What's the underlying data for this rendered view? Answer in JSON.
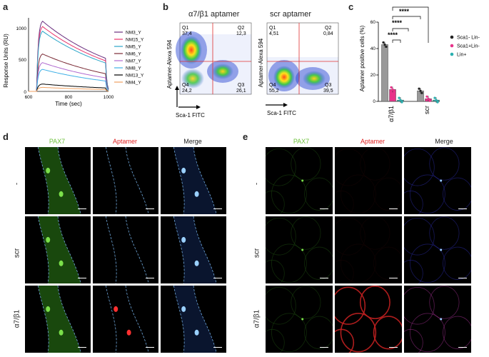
{
  "panel_labels": {
    "a": "a",
    "b": "b",
    "c": "c",
    "d": "d",
    "e": "e"
  },
  "panel_a": {
    "ylabel": "Response Units (RU)",
    "xlabel": "Time (sec)",
    "yticks": [
      "0",
      "500",
      "1000"
    ],
    "xticks": [
      "600",
      "800",
      "1000"
    ],
    "legend": [
      {
        "name": "NM3_Y",
        "color": "#6a2e7f"
      },
      {
        "name": "NM15_Y",
        "color": "#e8336b"
      },
      {
        "name": "NM5_Y",
        "color": "#2aa5c9"
      },
      {
        "name": "NM6_Y",
        "color": "#7a2a35"
      },
      {
        "name": "NM7_Y",
        "color": "#b06ad0"
      },
      {
        "name": "NM8_Y",
        "color": "#3fb0e6"
      },
      {
        "name": "NM13_Y",
        "color": "#000000"
      },
      {
        "name": "NM4_Y",
        "color": "#f0a060"
      }
    ]
  },
  "panel_b": {
    "plot1_title": "α7/β1 aptamer",
    "plot2_title": "scr aptamer",
    "ylabel": "Aptamer-Alexa 594",
    "xlabel": "Sca-1 FITC",
    "plot1_quadrants": [
      {
        "q": "Q1",
        "v": "37,4"
      },
      {
        "q": "Q2",
        "v": "12,3"
      },
      {
        "q": "Q4",
        "v": "24,2"
      },
      {
        "q": "Q3",
        "v": "26,1"
      }
    ],
    "plot2_quadrants": [
      {
        "q": "Q1",
        "v": "4,51"
      },
      {
        "q": "Q2",
        "v": "0,84"
      },
      {
        "q": "Q4",
        "v": "55,2"
      },
      {
        "q": "Q3",
        "v": "39,5"
      }
    ]
  },
  "panel_c": {
    "ylabel": "Aptamer positive cells (%)",
    "yticks": [
      "0",
      "20",
      "40",
      "60"
    ],
    "groups": [
      "α7/β1",
      "scr"
    ],
    "sig": "****",
    "legend": [
      {
        "name": "Sca1- Lin-",
        "color": "#222222"
      },
      {
        "name": "Sca1+Lin-",
        "color": "#e8338a"
      },
      {
        "name": "Lin+",
        "color": "#2ab0b0"
      }
    ]
  },
  "chart_data": [
    {
      "type": "line",
      "title": "",
      "xlabel": "Time (sec)",
      "ylabel": "Response Units (RU)",
      "xlim": [
        600,
        1000
      ],
      "ylim": [
        0,
        1100
      ],
      "series": [
        {
          "name": "NM3_Y",
          "peak": 1050
        },
        {
          "name": "NM15_Y",
          "peak": 970
        },
        {
          "name": "NM5_Y",
          "peak": 900
        },
        {
          "name": "NM6_Y",
          "peak": 560
        },
        {
          "name": "NM7_Y",
          "peak": 430
        },
        {
          "name": "NM8_Y",
          "peak": 330
        },
        {
          "name": "NM13_Y",
          "peak": 110
        },
        {
          "name": "NM4_Y",
          "peak": 60
        }
      ]
    },
    {
      "type": "bar",
      "title": "",
      "xlabel": "",
      "ylabel": "Aptamer positive cells (%)",
      "categories": [
        "α7/β1",
        "scr"
      ],
      "ylim": [
        0,
        60
      ],
      "series": [
        {
          "name": "Sca1- Lin-",
          "values": [
            43,
            8
          ]
        },
        {
          "name": "Sca1+Lin-",
          "values": [
            9,
            2
          ]
        },
        {
          "name": "Lin+",
          "values": [
            1,
            1
          ]
        }
      ]
    }
  ],
  "panel_d": {
    "columns": [
      "PAX7",
      "Aptamer",
      "Merge"
    ],
    "rows": [
      "-",
      "scr",
      "α7/β1"
    ]
  },
  "panel_e": {
    "columns": [
      "PAX7",
      "Aptamer",
      "Merge"
    ],
    "rows": [
      "-",
      "scr",
      "α7/β1"
    ]
  },
  "colors": {
    "pax7": "#6ec23c",
    "aptamer": "#e02020",
    "merge": "#222222"
  }
}
